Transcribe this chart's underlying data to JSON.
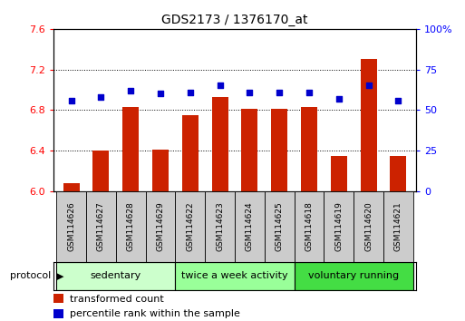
{
  "title": "GDS2173 / 1376170_at",
  "samples": [
    "GSM114626",
    "GSM114627",
    "GSM114628",
    "GSM114629",
    "GSM114622",
    "GSM114623",
    "GSM114624",
    "GSM114625",
    "GSM114618",
    "GSM114619",
    "GSM114620",
    "GSM114621"
  ],
  "bar_values": [
    6.08,
    6.4,
    6.83,
    6.41,
    6.75,
    6.93,
    6.81,
    6.81,
    6.83,
    6.35,
    7.3,
    6.35
  ],
  "dot_values": [
    56,
    58,
    62,
    60,
    61,
    65,
    61,
    61,
    61,
    57,
    65,
    56
  ],
  "bar_color": "#cc2200",
  "dot_color": "#0000cc",
  "ylim_left": [
    6.0,
    7.6
  ],
  "ylim_right": [
    0,
    100
  ],
  "yticks_left": [
    6.0,
    6.4,
    6.8,
    7.2,
    7.6
  ],
  "yticks_right": [
    0,
    25,
    50,
    75,
    100
  ],
  "ytick_labels_right": [
    "0",
    "25",
    "50",
    "75",
    "100%"
  ],
  "groups": [
    {
      "label": "sedentary",
      "indices": [
        0,
        1,
        2,
        3
      ],
      "color": "#ccffcc"
    },
    {
      "label": "twice a week activity",
      "indices": [
        4,
        5,
        6,
        7
      ],
      "color": "#99ff99"
    },
    {
      "label": "voluntary running",
      "indices": [
        8,
        9,
        10,
        11
      ],
      "color": "#44dd44"
    }
  ],
  "protocol_label": "protocol",
  "legend_bar_label": "transformed count",
  "legend_dot_label": "percentile rank within the sample",
  "bar_width": 0.55,
  "grid_linestyle": ":",
  "grid_color": "#000000",
  "label_box_color": "#cccccc"
}
